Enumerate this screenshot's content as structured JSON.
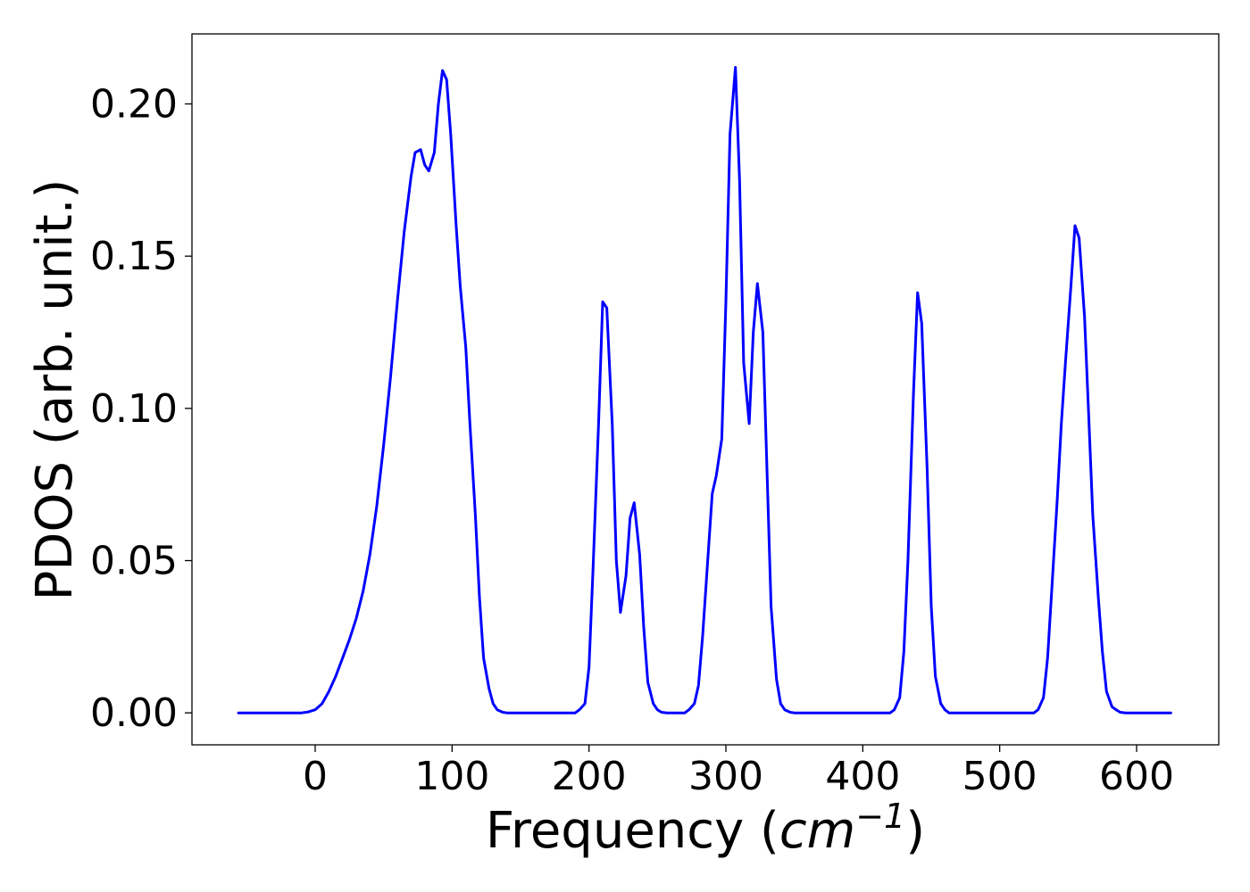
{
  "chart_data": {
    "type": "line",
    "xlabel_prefix": "Frequency (",
    "xlabel_unit": "cm",
    "xlabel_exponent": "−1",
    "xlabel_suffix": ")",
    "ylabel": "PDOS (arb. unit.)",
    "xlim": [
      -90,
      660
    ],
    "ylim": [
      -0.0105,
      0.223
    ],
    "xticks": [
      0,
      100,
      200,
      300,
      400,
      500,
      600
    ],
    "xtick_labels": [
      "0",
      "100",
      "200",
      "300",
      "400",
      "500",
      "600"
    ],
    "yticks": [
      0.0,
      0.05,
      0.1,
      0.15,
      0.2
    ],
    "ytick_labels": [
      "0.00",
      "0.05",
      "0.10",
      "0.15",
      "0.20"
    ],
    "grid": false,
    "line_color": "#0000ff",
    "series": [
      {
        "x": [
          -56,
          -10,
          -5,
          0,
          5,
          10,
          15,
          20,
          25,
          30,
          35,
          40,
          45,
          50,
          55,
          60,
          65,
          70,
          73,
          77,
          80,
          83,
          87,
          90,
          93,
          96,
          99,
          103,
          106,
          110,
          113,
          117,
          120,
          123,
          127,
          130,
          133,
          137,
          140,
          143,
          147,
          150,
          190,
          193,
          197,
          200,
          203,
          207,
          210,
          213,
          217,
          220,
          223,
          227,
          230,
          233,
          237,
          240,
          243,
          247,
          250,
          253,
          257,
          270,
          273,
          277,
          280,
          283,
          287,
          290,
          293,
          297,
          300,
          303,
          307,
          310,
          313,
          317,
          320,
          323,
          327,
          330,
          333,
          337,
          340,
          343,
          347,
          350,
          420,
          423,
          427,
          430,
          433,
          437,
          440,
          443,
          447,
          450,
          453,
          457,
          460,
          463,
          525,
          528,
          532,
          535,
          538,
          542,
          545,
          548,
          552,
          555,
          558,
          562,
          565,
          568,
          572,
          575,
          578,
          582,
          585,
          588,
          592,
          625
        ],
        "y": [
          0.0,
          0.0,
          0.0003,
          0.001,
          0.003,
          0.007,
          0.012,
          0.018,
          0.024,
          0.031,
          0.04,
          0.052,
          0.068,
          0.088,
          0.11,
          0.135,
          0.158,
          0.176,
          0.184,
          0.185,
          0.18,
          0.178,
          0.184,
          0.2,
          0.211,
          0.208,
          0.19,
          0.16,
          0.14,
          0.12,
          0.095,
          0.065,
          0.038,
          0.018,
          0.008,
          0.003,
          0.001,
          0.0002,
          0.0,
          0.0,
          0.0,
          0.0,
          0.0,
          0.001,
          0.003,
          0.015,
          0.048,
          0.095,
          0.135,
          0.133,
          0.095,
          0.05,
          0.033,
          0.045,
          0.064,
          0.069,
          0.052,
          0.028,
          0.01,
          0.003,
          0.001,
          0.0002,
          0.0,
          0.0,
          0.001,
          0.003,
          0.009,
          0.025,
          0.052,
          0.072,
          0.078,
          0.09,
          0.135,
          0.19,
          0.212,
          0.175,
          0.115,
          0.095,
          0.125,
          0.141,
          0.125,
          0.08,
          0.035,
          0.011,
          0.003,
          0.001,
          0.0002,
          0.0,
          0.0,
          0.001,
          0.005,
          0.02,
          0.05,
          0.105,
          0.138,
          0.128,
          0.08,
          0.035,
          0.012,
          0.003,
          0.001,
          0.0,
          0.0,
          0.001,
          0.005,
          0.018,
          0.04,
          0.07,
          0.095,
          0.115,
          0.14,
          0.16,
          0.156,
          0.13,
          0.098,
          0.065,
          0.038,
          0.02,
          0.007,
          0.002,
          0.001,
          0.0002,
          0.0,
          0.0
        ]
      }
    ]
  }
}
